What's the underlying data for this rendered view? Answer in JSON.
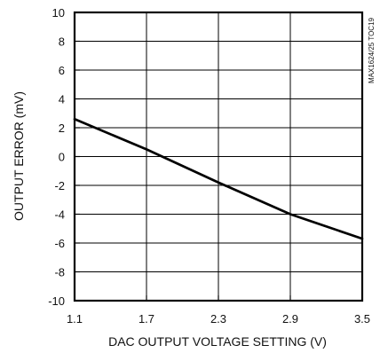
{
  "chart_data": {
    "type": "line",
    "title": "",
    "xlabel": "DAC OUTPUT VOLTAGE SETTING (V)",
    "ylabel": "OUTPUT ERROR (mV)",
    "xlim": [
      1.1,
      3.5
    ],
    "ylim": [
      -10,
      10
    ],
    "x_ticks": [
      1.1,
      1.7,
      2.3,
      2.9,
      3.5
    ],
    "x_tick_labels": [
      "1.1",
      "1.7",
      "2.3",
      "2.9",
      "3.5"
    ],
    "y_ticks": [
      10,
      8,
      6,
      4,
      2,
      0,
      -2,
      -4,
      -6,
      -8,
      -10
    ],
    "y_tick_labels": [
      "10",
      "8",
      "6",
      "4",
      "2",
      "0",
      "-2",
      "-4",
      "-6",
      "-8",
      "-10"
    ],
    "grid": true,
    "legend": "none",
    "series": [
      {
        "x": [
          1.1,
          1.7,
          2.3,
          2.9,
          3.5
        ],
        "values": [
          2.6,
          0.5,
          -1.8,
          -4.0,
          -5.7
        ],
        "color": "#000000"
      }
    ],
    "side_note": "MAX1624/25 TOC19"
  }
}
